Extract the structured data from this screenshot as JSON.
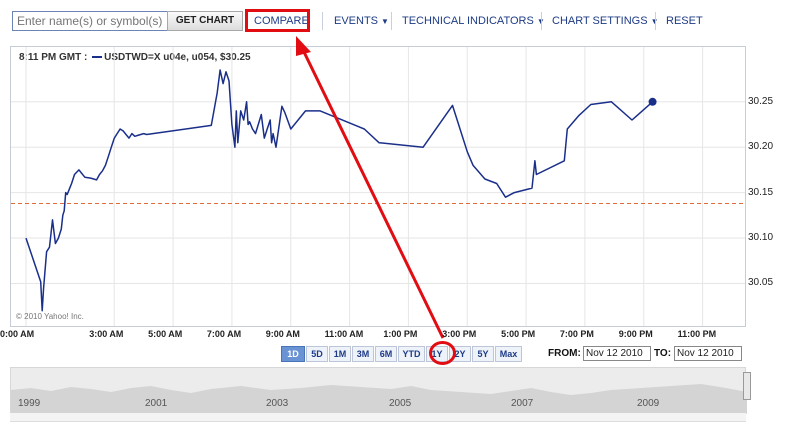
{
  "toolbar": {
    "search_placeholder": "Enter name(s) or symbol(s)",
    "get_chart": "GET CHART",
    "compare": "COMPARE",
    "events": "EVENTS",
    "technical_indicators": "TECHNICAL INDICATORS",
    "chart_settings": "CHART SETTINGS",
    "reset": "RESET"
  },
  "legend": {
    "time": "8:11 PM GMT :",
    "series": "USDTWD=X u04e, u054, $30.25"
  },
  "copyright": "© 2010 Yahoo! Inc.",
  "ranges": [
    "1D",
    "5D",
    "1M",
    "3M",
    "6M",
    "YTD",
    "1Y",
    "2Y",
    "5Y",
    "Max"
  ],
  "active_range": "1D",
  "highlighted_range": "1Y",
  "from_label": "FROM:",
  "from_date": "Nov 12 2010",
  "to_label": "TO:",
  "to_date": "Nov 12 2010",
  "overview_years": [
    "1999",
    "2001",
    "2003",
    "2005",
    "2007",
    "2009"
  ],
  "colors": {
    "series": "#1a2f8a",
    "annotation": "#e10d12",
    "reference_line": "#e06a3a"
  },
  "chart_data": {
    "type": "line",
    "x_unit": "hour of day (GMT)",
    "x_ticks": [
      "0:00 AM",
      "3:00 AM",
      "5:00 AM",
      "7:00 AM",
      "9:00 AM",
      "11:00 AM",
      "1:00 PM",
      "3:00 PM",
      "5:00 PM",
      "7:00 PM",
      "9:00 PM",
      "11:00 PM"
    ],
    "y_ticks": [
      "30.25",
      "30.20",
      "30.15",
      "30.10",
      "30.05"
    ],
    "xlim": [
      0,
      24
    ],
    "ylim": [
      30.012,
      30.296
    ],
    "reference_value": 30.138,
    "series": [
      {
        "name": "USDTWD=X",
        "x": [
          0.0,
          0.5,
          0.55,
          0.6,
          0.7,
          0.8,
          0.9,
          1.0,
          1.1,
          1.2,
          1.25,
          1.3,
          1.35,
          1.4,
          1.5,
          1.55,
          1.65,
          1.8,
          2.0,
          2.2,
          2.4,
          2.5,
          2.6,
          2.7,
          2.8,
          2.9,
          3.0,
          3.2,
          3.3,
          3.5,
          3.6,
          3.7,
          3.8,
          3.9,
          4.0,
          4.1,
          6.3,
          6.5,
          6.6,
          6.7,
          6.8,
          6.9,
          7.0,
          7.1,
          7.15,
          7.2,
          7.3,
          7.4,
          7.5,
          7.55,
          7.6,
          7.7,
          7.8,
          8.0,
          8.1,
          8.2,
          8.3,
          8.35,
          8.4,
          8.5,
          8.7,
          8.8,
          9.0,
          9.5,
          10.0,
          11.5,
          12.0,
          13.5,
          14.5,
          15.0,
          15.2,
          15.6,
          16.0,
          16.3,
          16.6,
          17.2,
          17.3,
          17.35,
          18.3,
          18.4,
          18.8,
          19.2,
          19.9,
          20.6,
          21.3
        ],
        "y": [
          30.1,
          30.052,
          30.02,
          30.045,
          30.085,
          30.09,
          30.12,
          30.094,
          30.1,
          30.11,
          30.125,
          30.13,
          30.15,
          30.148,
          30.156,
          30.16,
          30.17,
          30.175,
          30.167,
          30.166,
          30.164,
          30.17,
          30.174,
          30.18,
          30.19,
          30.2,
          30.21,
          30.22,
          30.218,
          30.21,
          30.215,
          30.212,
          30.213,
          30.214,
          30.215,
          30.214,
          30.224,
          30.26,
          30.285,
          30.27,
          30.283,
          30.273,
          30.225,
          30.2,
          30.24,
          30.205,
          30.24,
          30.23,
          30.25,
          30.225,
          30.228,
          30.22,
          30.215,
          30.236,
          30.21,
          30.22,
          30.23,
          30.205,
          30.215,
          30.2,
          30.245,
          30.238,
          30.22,
          30.24,
          30.24,
          30.22,
          30.205,
          30.2,
          30.246,
          30.195,
          30.18,
          30.165,
          30.16,
          30.145,
          30.15,
          30.155,
          30.185,
          30.17,
          30.185,
          30.22,
          30.235,
          30.247,
          30.25,
          30.23,
          30.25
        ]
      }
    ]
  }
}
